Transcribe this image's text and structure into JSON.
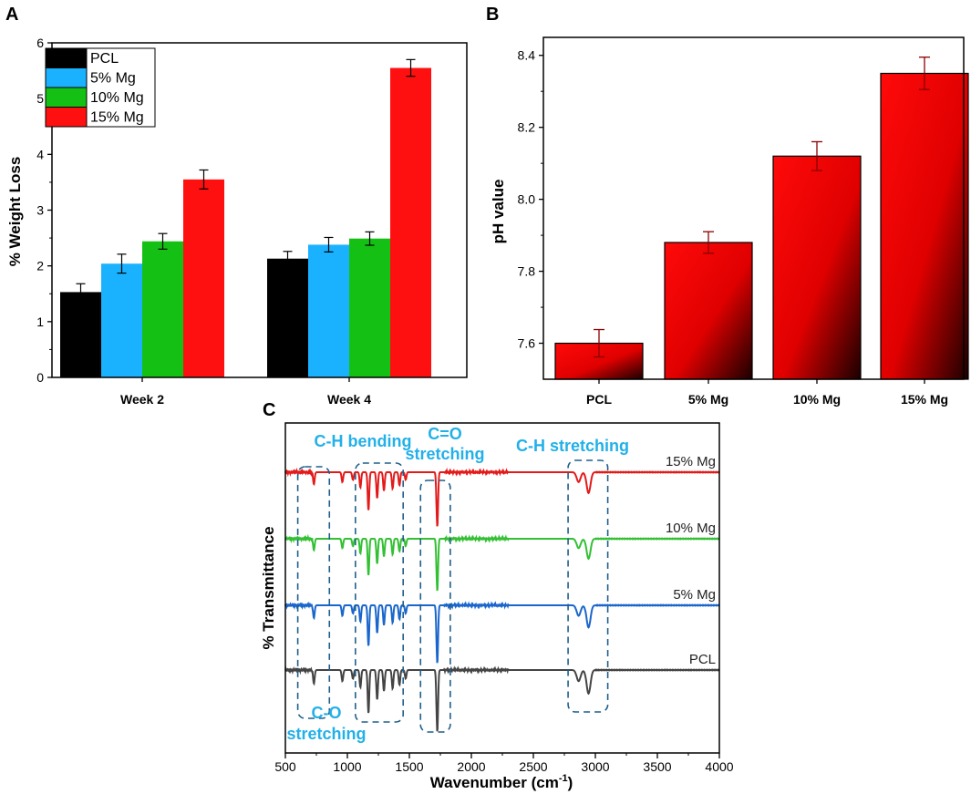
{
  "figure": {
    "panels": [
      {
        "letter": "A"
      },
      {
        "letter": "B"
      },
      {
        "letter": "C"
      }
    ]
  },
  "colors": {
    "pcl": "#000000",
    "mg5": "#1ab2ff",
    "mg10": "#14c014",
    "mg15": "#ff1010",
    "annotation": "#22b0e8",
    "box": "#1f5f8b",
    "ftir": [
      "#e31a1a",
      "#33c033",
      "#1a66cc",
      "#444444"
    ]
  },
  "chart_data": [
    {
      "panel": "A",
      "type": "bar",
      "ylabel": "% Weight Loss",
      "xlabel": "",
      "ylim": [
        0,
        6
      ],
      "yticks": [
        0,
        1,
        2,
        3,
        4,
        5,
        6
      ],
      "grid": false,
      "legend_position": "top-left",
      "categories": [
        "Week 2",
        "Week 4"
      ],
      "series": [
        {
          "name": "PCL",
          "color": "#000000",
          "values": [
            1.53,
            2.13
          ],
          "errors": [
            0.15,
            0.13
          ]
        },
        {
          "name": "5% Mg",
          "color": "#1ab2ff",
          "values": [
            2.04,
            2.38
          ],
          "errors": [
            0.17,
            0.13
          ]
        },
        {
          "name": "10% Mg",
          "color": "#14c014",
          "values": [
            2.44,
            2.49
          ],
          "errors": [
            0.14,
            0.12
          ]
        },
        {
          "name": "15% Mg",
          "color": "#ff1010",
          "values": [
            3.55,
            5.55
          ],
          "errors": [
            0.17,
            0.15
          ]
        }
      ]
    },
    {
      "panel": "B",
      "type": "bar",
      "ylabel": "pH value",
      "xlabel": "",
      "ylim": [
        7.5,
        8.45
      ],
      "yticks": [
        "7.6",
        "7.8",
        "8.0",
        "8.2",
        "8.4"
      ],
      "grid": false,
      "categories": [
        "PCL",
        "5% Mg",
        "10% Mg",
        "15% Mg"
      ],
      "values": [
        7.6,
        7.88,
        8.12,
        8.35
      ],
      "errors": [
        0.038,
        0.03,
        0.04,
        0.045
      ]
    },
    {
      "panel": "C",
      "type": "line",
      "xlabel": "Wavenumber (cm",
      "xlabel_sup": "-1",
      "xlabel_tail": ")",
      "ylabel": "% Transmittance",
      "xlim": [
        500,
        4000
      ],
      "xticks": [
        500,
        1000,
        1500,
        2000,
        2500,
        3000,
        3500,
        4000
      ],
      "series": [
        {
          "name": "15% Mg",
          "offset": 3
        },
        {
          "name": "10% Mg",
          "offset": 2
        },
        {
          "name": "5% Mg",
          "offset": 1
        },
        {
          "name": "PCL",
          "offset": 0
        }
      ],
      "peaks": [
        {
          "x": 730,
          "depth": 0.22
        },
        {
          "x": 960,
          "depth": 0.18
        },
        {
          "x": 1045,
          "depth": 0.14
        },
        {
          "x": 1105,
          "depth": 0.28
        },
        {
          "x": 1170,
          "depth": 0.7
        },
        {
          "x": 1240,
          "depth": 0.48
        },
        {
          "x": 1295,
          "depth": 0.34
        },
        {
          "x": 1365,
          "depth": 0.3
        },
        {
          "x": 1420,
          "depth": 0.24
        },
        {
          "x": 1470,
          "depth": 0.14
        },
        {
          "x": 1725,
          "depth": 1.0
        },
        {
          "x": 2865,
          "depth": 0.18
        },
        {
          "x": 2945,
          "depth": 0.38
        }
      ],
      "regions": [
        {
          "x1": 600,
          "x2": 855,
          "label": "C-O",
          "label2": "stretching",
          "label_pos": "bottom"
        },
        {
          "x1": 1065,
          "x2": 1450,
          "label": "C-H bending",
          "label_pos": "top"
        },
        {
          "x1": 1590,
          "x2": 1830,
          "label": "C=O",
          "label2": "stretching",
          "label_pos": "top"
        },
        {
          "x1": 2780,
          "x2": 3100,
          "label": "C-H stretching",
          "label_pos": "top"
        }
      ]
    }
  ]
}
